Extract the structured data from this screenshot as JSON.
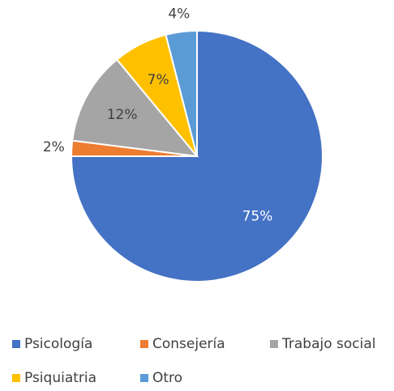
{
  "chart_data": {
    "type": "pie",
    "categories": [
      "Psicología",
      "Consejería",
      "Trabajo social",
      "Psiquiatria",
      "Otro"
    ],
    "values": [
      75,
      2,
      12,
      7,
      4
    ],
    "value_labels": [
      "75%",
      "2%",
      "12%",
      "7%",
      "4%"
    ],
    "colors": [
      "#4472c4",
      "#ed7d31",
      "#a5a5a5",
      "#ffc000",
      "#5b9bd5"
    ],
    "legend": "bottom"
  }
}
